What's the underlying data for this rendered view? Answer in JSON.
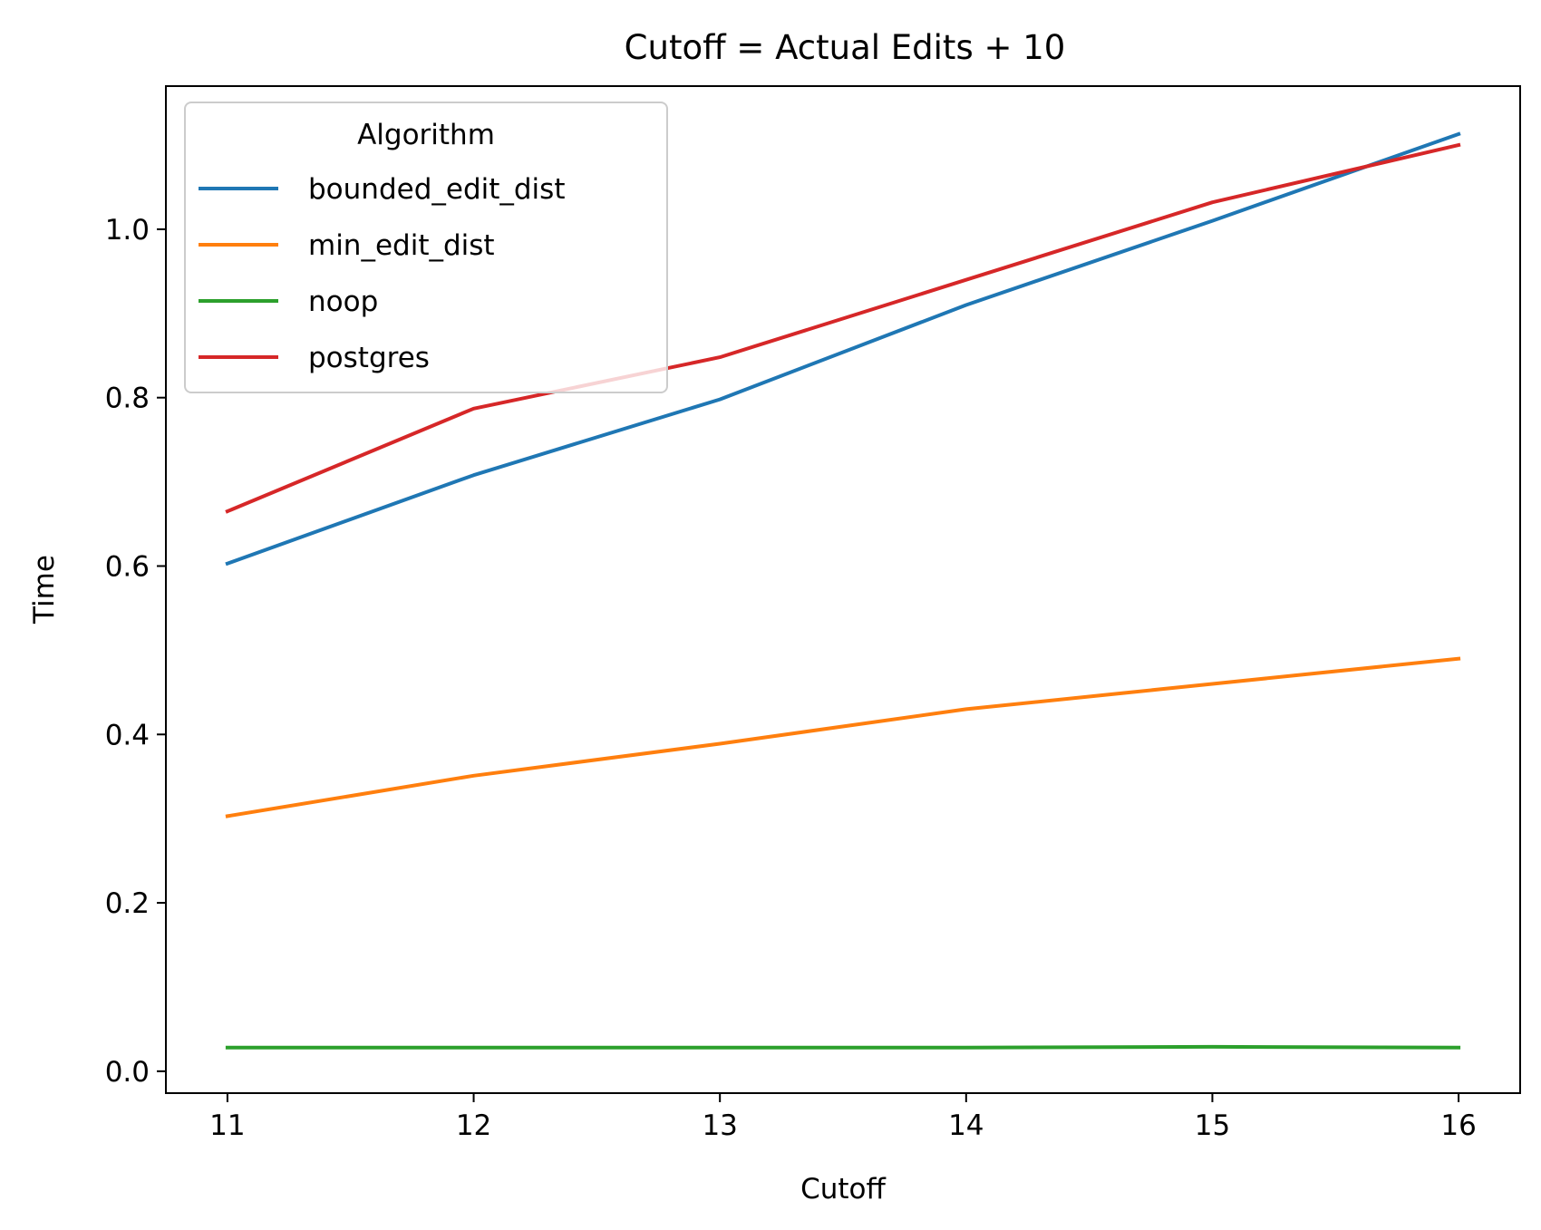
{
  "chart_data": {
    "type": "line",
    "title": "Cutoff = Actual Edits + 10",
    "xlabel": "Cutoff",
    "ylabel": "Time",
    "x": [
      11,
      12,
      13,
      14,
      15,
      16
    ],
    "xticks": [
      "11",
      "12",
      "13",
      "14",
      "15",
      "16"
    ],
    "yticks": [
      "0.0",
      "0.2",
      "0.4",
      "0.6",
      "0.8",
      "1.0"
    ],
    "xlim": [
      10.75,
      16.25
    ],
    "ylim": [
      -0.026,
      1.17
    ],
    "grid": false,
    "legend": {
      "title": "Algorithm",
      "placement": "upper left"
    },
    "series": [
      {
        "name": "bounded_edit_dist",
        "color": "#1f77b4",
        "values": [
          0.603,
          0.708,
          0.798,
          0.91,
          1.01,
          1.113
        ]
      },
      {
        "name": "min_edit_dist",
        "color": "#ff7f0e",
        "values": [
          0.303,
          0.351,
          0.389,
          0.43,
          0.46,
          0.49
        ]
      },
      {
        "name": "noop",
        "color": "#2ca02c",
        "values": [
          0.028,
          0.028,
          0.028,
          0.028,
          0.029,
          0.028
        ]
      },
      {
        "name": "postgres",
        "color": "#d62728",
        "values": [
          0.665,
          0.787,
          0.848,
          0.94,
          1.032,
          1.1
        ]
      }
    ]
  }
}
